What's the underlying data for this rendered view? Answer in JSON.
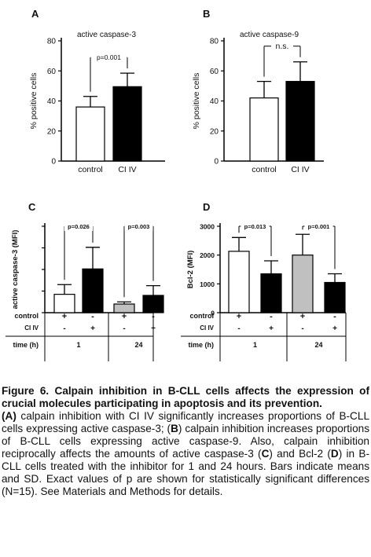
{
  "chart_data": [
    {
      "panel": "A",
      "type": "bar",
      "title": "active caspase-3",
      "ylabel": "% positive cells",
      "categories": [
        "control",
        "CI IV"
      ],
      "values": [
        36,
        49.5
      ],
      "errors": [
        7,
        9
      ],
      "fills": [
        "#ffffff",
        "#000000"
      ],
      "ylim": [
        0,
        80
      ],
      "yticks": [
        "0",
        "20",
        "40",
        "60",
        "80"
      ],
      "annotations": [
        {
          "label": "p=0.001",
          "between": [
            0,
            1
          ]
        }
      ]
    },
    {
      "panel": "B",
      "type": "bar",
      "title": "active caspase-9",
      "ylabel": "% positive cells",
      "categories": [
        "control",
        "CI IV"
      ],
      "values": [
        42,
        53
      ],
      "errors": [
        11,
        13
      ],
      "fills": [
        "#ffffff",
        "#000000"
      ],
      "ylim": [
        0,
        80
      ],
      "yticks": [
        "0",
        "20",
        "40",
        "60",
        "80"
      ],
      "annotations": [
        {
          "label": "n.s.",
          "between": [
            0,
            1
          ]
        }
      ]
    },
    {
      "panel": "C",
      "type": "bar",
      "ylabel": "active caspase-3 (MFI)",
      "values": [
        17,
        40.5,
        8,
        16
      ],
      "errors": [
        9,
        20,
        2,
        9
      ],
      "fills": [
        "#ffffff",
        "#000000",
        "#c0c0c0",
        "#000000"
      ],
      "ylim": [
        0,
        80
      ],
      "annotations": [
        {
          "label": "p=0.026",
          "between": [
            0,
            1
          ]
        },
        {
          "label": "p=0.003",
          "between": [
            2,
            3
          ]
        }
      ]
    },
    {
      "panel": "D",
      "type": "bar",
      "ylabel": "Bcl-2 (MFI)",
      "values": [
        2130,
        1350,
        2000,
        1050
      ],
      "errors": [
        480,
        450,
        720,
        300
      ],
      "fills": [
        "#ffffff",
        "#000000",
        "#c0c0c0",
        "#000000"
      ],
      "ylim": [
        0,
        3000
      ],
      "yticks": [
        "0",
        "1000",
        "2000",
        "3000"
      ],
      "annotations": [
        {
          "label": "p=0.013",
          "between": [
            0,
            1
          ]
        },
        {
          "label": "p=0.001",
          "between": [
            2,
            3
          ]
        }
      ]
    }
  ],
  "treatment_table": {
    "row_labels": [
      "control",
      "CI IV",
      "time (h)"
    ],
    "control_marks": [
      "+",
      "-",
      "+",
      "-"
    ],
    "ci_iv_marks": [
      "-",
      "+",
      "-",
      "+"
    ],
    "times": [
      "1",
      "24"
    ]
  },
  "caption": {
    "title": "Figure 6. Calpain inhibition in B-CLL cells affects the expression of crucial molecules participating in apoptosis and its prevention.",
    "seg1_letter": "(A)",
    "seg1_text": " calpain inhibition with CI IV significantly increases proportions of B-CLL cells expressing active caspase-3; (",
    "seg2_letter": "B",
    "seg2_text": ") calpain inhibition increases proportions of B-CLL cells expressing active caspase-9. Also, calpain inhibition reciprocally affects the amounts of active caspase-3 (",
    "seg3_letter": "C",
    "seg3_text": ") and Bcl-2 (",
    "seg4_letter": "D",
    "seg4_text": ") in B-CLL cells treated with the inhibitor for 1 and 24 hours. Bars indicate means and SD. Exact values of p are shown for statistically significant differences (N=15). See Materials and Methods for details."
  }
}
